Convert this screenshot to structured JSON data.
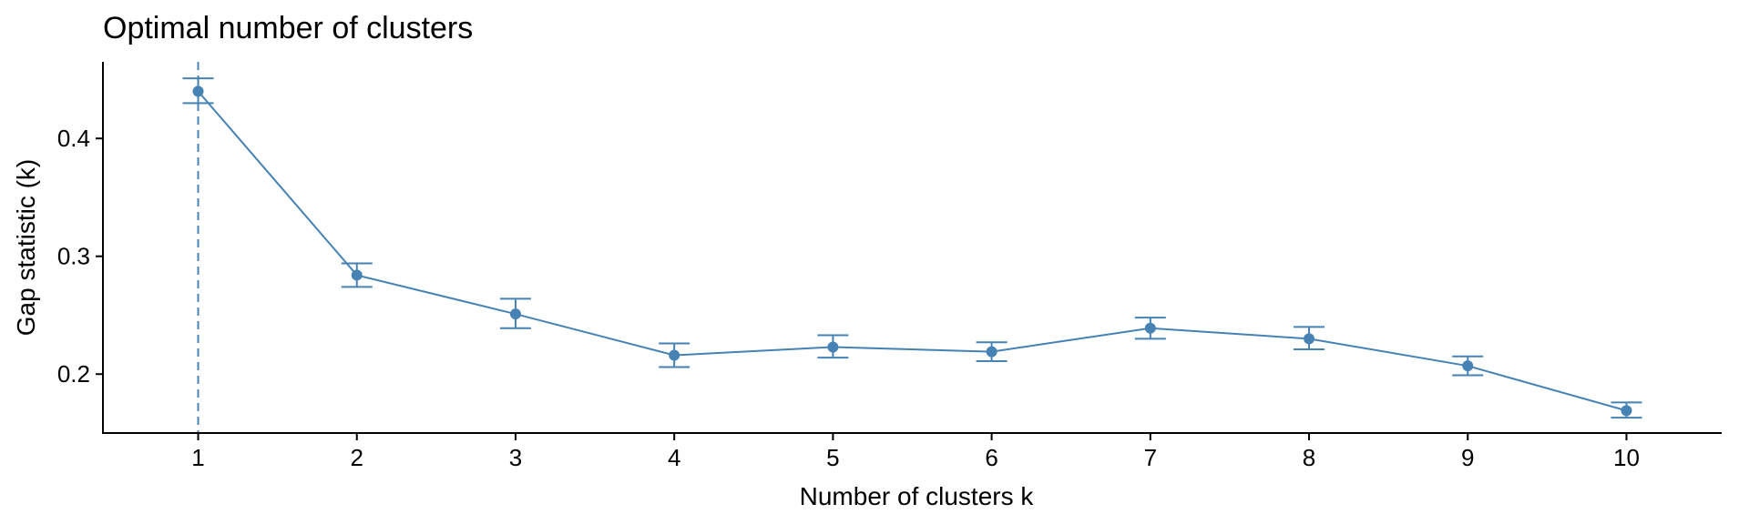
{
  "chart_data": {
    "type": "line",
    "title": "Optimal number of clusters",
    "xlabel": "Number of clusters k",
    "ylabel": "Gap statistic (k)",
    "x": [
      1,
      2,
      3,
      4,
      5,
      6,
      7,
      8,
      9,
      10
    ],
    "x_tick_labels": [
      "1",
      "2",
      "3",
      "4",
      "5",
      "6",
      "7",
      "8",
      "9",
      "10"
    ],
    "y_ticks": [
      0.2,
      0.3,
      0.4
    ],
    "y_tick_labels": [
      "0.2",
      "0.3",
      "0.4"
    ],
    "xlim": [
      0.4,
      10.6
    ],
    "ylim": [
      0.15,
      0.465
    ],
    "series": [
      {
        "values": [
          0.44,
          0.284,
          0.251,
          0.216,
          0.223,
          0.219,
          0.239,
          0.23,
          0.207,
          0.169
        ],
        "error_lower": [
          0.43,
          0.274,
          0.239,
          0.206,
          0.214,
          0.211,
          0.23,
          0.221,
          0.199,
          0.163
        ],
        "error_upper": [
          0.451,
          0.294,
          0.264,
          0.226,
          0.233,
          0.227,
          0.248,
          0.24,
          0.215,
          0.176
        ]
      }
    ],
    "optimal_k": 1,
    "grid": false,
    "legend": "none",
    "colors": {
      "series": "#4682B4",
      "axis": "#000000"
    }
  }
}
